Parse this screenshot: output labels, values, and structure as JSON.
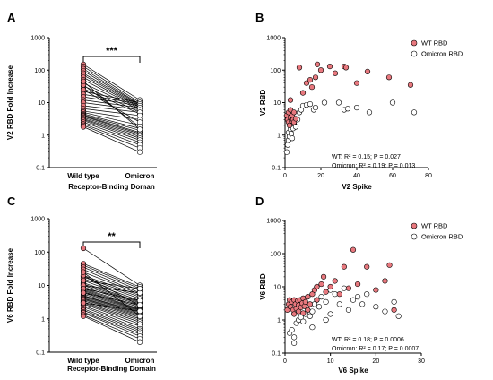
{
  "colors": {
    "wt": "#e8787e",
    "omicron": "#ffffff",
    "stroke": "#000000"
  },
  "chart_data": [
    {
      "panel": "A",
      "type": "scatter",
      "subtype": "paired-before-after",
      "ylabel": "V2 RBD Fold Increase",
      "xlabel": "Receptor-Binding Doman",
      "categories": [
        "Wild type",
        "Omicron"
      ],
      "yscale": "log",
      "ylim": [
        0.1,
        1000
      ],
      "yticks": [
        "0.1",
        "1",
        "10",
        "100",
        "1000"
      ],
      "significance": "***",
      "pairs": [
        [
          150,
          12
        ],
        [
          130,
          10
        ],
        [
          110,
          9
        ],
        [
          95,
          8.5
        ],
        [
          80,
          8
        ],
        [
          70,
          7.5
        ],
        [
          60,
          7
        ],
        [
          50,
          6.5
        ],
        [
          40,
          6
        ],
        [
          33,
          5
        ],
        [
          27,
          4.5
        ],
        [
          22,
          10
        ],
        [
          18,
          9
        ],
        [
          15,
          8
        ],
        [
          12,
          7
        ],
        [
          10,
          6
        ],
        [
          8,
          5
        ],
        [
          6.5,
          4
        ],
        [
          5.5,
          3
        ],
        [
          5,
          2
        ],
        [
          4.5,
          1.6
        ],
        [
          4.2,
          1.4
        ],
        [
          4,
          1.2
        ],
        [
          3.8,
          1.1
        ],
        [
          3.5,
          1
        ],
        [
          3.2,
          0.9
        ],
        [
          3,
          0.8
        ],
        [
          2.8,
          0.7
        ],
        [
          2.5,
          0.6
        ],
        [
          2.2,
          0.5
        ],
        [
          2,
          0.4
        ],
        [
          1.8,
          0.3
        ],
        [
          25,
          2.5
        ],
        [
          35,
          1.8
        ],
        [
          45,
          1.5
        ]
      ]
    },
    {
      "panel": "B",
      "type": "scatter",
      "xlabel": "V2 Spike",
      "ylabel": "V2 RBD",
      "yscale": "log",
      "ylim": [
        0.1,
        1000
      ],
      "xlim": [
        0,
        80
      ],
      "xticks": [
        "0",
        "20",
        "40",
        "60",
        "80"
      ],
      "yticks": [
        "0.1",
        "1",
        "10",
        "100",
        "1000"
      ],
      "legend": [
        "WT RBD",
        "Omicron RBD"
      ],
      "annotation_wt": "WT: R² = 0.15; P = 0.027",
      "annotation_om": "Omicron: R² = 0.19; P = 0.013",
      "series": [
        {
          "name": "WT RBD",
          "points": [
            [
              1,
              4
            ],
            [
              1.5,
              3
            ],
            [
              2,
              2.5
            ],
            [
              2,
              5
            ],
            [
              2.5,
              2
            ],
            [
              3,
              3.5
            ],
            [
              3,
              6
            ],
            [
              3.5,
              2.8
            ],
            [
              4,
              4
            ],
            [
              4.5,
              3
            ],
            [
              5,
              2.5
            ],
            [
              5,
              5
            ],
            [
              6,
              3.2
            ],
            [
              3,
              12
            ],
            [
              8,
              120
            ],
            [
              10,
              20
            ],
            [
              12,
              40
            ],
            [
              14,
              50
            ],
            [
              15,
              30
            ],
            [
              17,
              60
            ],
            [
              18,
              150
            ],
            [
              20,
              100
            ],
            [
              25,
              130
            ],
            [
              28,
              80
            ],
            [
              33,
              130
            ],
            [
              34,
              120
            ],
            [
              40,
              40
            ],
            [
              46,
              90
            ],
            [
              58,
              60
            ],
            [
              70,
              35
            ]
          ]
        },
        {
          "name": "Omicron RBD",
          "points": [
            [
              1,
              0.3
            ],
            [
              1.5,
              0.5
            ],
            [
              2,
              0.7
            ],
            [
              2,
              1.2
            ],
            [
              2.5,
              0.9
            ],
            [
              3,
              1.5
            ],
            [
              3,
              2
            ],
            [
              3.5,
              1.1
            ],
            [
              4,
              0.8
            ],
            [
              4.5,
              1.6
            ],
            [
              5,
              2.2
            ],
            [
              6,
              1.8
            ],
            [
              7,
              3
            ],
            [
              8,
              5
            ],
            [
              9,
              6
            ],
            [
              10,
              8
            ],
            [
              12,
              8.5
            ],
            [
              14,
              9
            ],
            [
              16,
              6
            ],
            [
              17,
              7
            ],
            [
              22,
              10
            ],
            [
              30,
              10
            ],
            [
              33,
              6
            ],
            [
              35,
              6.5
            ],
            [
              40,
              7
            ],
            [
              47,
              5
            ],
            [
              60,
              10
            ],
            [
              72,
              5
            ]
          ]
        }
      ]
    },
    {
      "panel": "C",
      "type": "scatter",
      "subtype": "paired-before-after",
      "ylabel": "V6 RBD Fold Increase",
      "xlabel": "Receptor-Binding Domain",
      "categories": [
        "Wild type",
        "Omicron"
      ],
      "yscale": "log",
      "ylim": [
        0.1,
        1000
      ],
      "yticks": [
        "0.1",
        "1",
        "10",
        "100",
        "1000"
      ],
      "significance": "**",
      "pairs": [
        [
          130,
          10
        ],
        [
          45,
          9
        ],
        [
          40,
          8
        ],
        [
          35,
          7
        ],
        [
          30,
          6
        ],
        [
          25,
          5.5
        ],
        [
          20,
          5
        ],
        [
          18,
          4.5
        ],
        [
          16,
          4
        ],
        [
          14,
          3.5
        ],
        [
          12,
          3.2
        ],
        [
          11,
          3
        ],
        [
          10,
          2.8
        ],
        [
          9,
          2.6
        ],
        [
          8,
          2.4
        ],
        [
          7.5,
          2.2
        ],
        [
          7,
          2
        ],
        [
          6.5,
          1.9
        ],
        [
          6,
          1.8
        ],
        [
          5.5,
          1.7
        ],
        [
          5,
          1.6
        ],
        [
          4.8,
          1.5
        ],
        [
          4.5,
          1.4
        ],
        [
          4.2,
          1.3
        ],
        [
          4,
          1.2
        ],
        [
          3.8,
          1.1
        ],
        [
          3.5,
          1
        ],
        [
          3.2,
          0.9
        ],
        [
          3,
          0.8
        ],
        [
          2.8,
          0.7
        ],
        [
          2.5,
          0.6
        ],
        [
          2.3,
          0.5
        ],
        [
          2,
          0.45
        ],
        [
          1.8,
          0.4
        ],
        [
          1.6,
          0.35
        ],
        [
          1.5,
          0.3
        ],
        [
          1.3,
          0.25
        ],
        [
          1.2,
          0.2
        ],
        [
          10,
          6
        ],
        [
          14,
          8
        ],
        [
          20,
          2.5
        ],
        [
          25,
          1.2
        ],
        [
          8,
          3.5
        ],
        [
          6,
          2.6
        ],
        [
          3,
          1.7
        ]
      ]
    },
    {
      "panel": "D",
      "type": "scatter",
      "xlabel": "V6 Spike",
      "ylabel": "V6 RBD",
      "yscale": "log",
      "ylim": [
        0.1,
        1000
      ],
      "xlim": [
        0,
        30
      ],
      "xticks": [
        "0",
        "10",
        "20",
        "30"
      ],
      "yticks": [
        "0.1",
        "1",
        "10",
        "100",
        "1000"
      ],
      "legend": [
        "WT RBD",
        "Omicron RBD"
      ],
      "annotation_wt": "WT: R² = 0.18; P = 0.0006",
      "annotation_om": "Omicron: R² = 0.17; P = 0.0007",
      "series": [
        {
          "name": "WT RBD",
          "points": [
            [
              0.5,
              2
            ],
            [
              0.8,
              3
            ],
            [
              1,
              4
            ],
            [
              1.2,
              2.5
            ],
            [
              1.5,
              3.5
            ],
            [
              1.8,
              2
            ],
            [
              2,
              4
            ],
            [
              2,
              1.5
            ],
            [
              2.3,
              3
            ],
            [
              2.5,
              2.2
            ],
            [
              2.8,
              3.8
            ],
            [
              3,
              1.8
            ],
            [
              3,
              2.8
            ],
            [
              3.3,
              4
            ],
            [
              3.5,
              2.4
            ],
            [
              3.8,
              3.2
            ],
            [
              4,
              1.6
            ],
            [
              4,
              4.5
            ],
            [
              4.3,
              2.6
            ],
            [
              4.5,
              3.5
            ],
            [
              5,
              2
            ],
            [
              5,
              5
            ],
            [
              5.5,
              3
            ],
            [
              6,
              6
            ],
            [
              6.5,
              8
            ],
            [
              7,
              10
            ],
            [
              7,
              4
            ],
            [
              8,
              12
            ],
            [
              8.5,
              20
            ],
            [
              9,
              7
            ],
            [
              10,
              10
            ],
            [
              11,
              15
            ],
            [
              12,
              6
            ],
            [
              13,
              40
            ],
            [
              14,
              9
            ],
            [
              16,
              12
            ],
            [
              18,
              40
            ],
            [
              20,
              8
            ],
            [
              22,
              15
            ],
            [
              23,
              45
            ],
            [
              15,
              130
            ],
            [
              24,
              2
            ]
          ]
        },
        {
          "name": "Omicron RBD",
          "points": [
            [
              1,
              0.4
            ],
            [
              1.5,
              0.5
            ],
            [
              2,
              0.3
            ],
            [
              2.5,
              0.8
            ],
            [
              3,
              1
            ],
            [
              3.5,
              1.2
            ],
            [
              4,
              0.9
            ],
            [
              4.5,
              1.5
            ],
            [
              5,
              2
            ],
            [
              5.5,
              1.3
            ],
            [
              6,
              1.8
            ],
            [
              6.5,
              3
            ],
            [
              7,
              4
            ],
            [
              7.5,
              2.5
            ],
            [
              8,
              5
            ],
            [
              9,
              3.5
            ],
            [
              10,
              1.5
            ],
            [
              10,
              8
            ],
            [
              11,
              6
            ],
            [
              12,
              3
            ],
            [
              13,
              9
            ],
            [
              14,
              2
            ],
            [
              15,
              4
            ],
            [
              16,
              5
            ],
            [
              17,
              3
            ],
            [
              18,
              6
            ],
            [
              20,
              2.5
            ],
            [
              22,
              1.8
            ],
            [
              24,
              3.5
            ],
            [
              25,
              1.3
            ],
            [
              2,
              0.2
            ],
            [
              6,
              0.6
            ],
            [
              9,
              1
            ]
          ]
        }
      ]
    }
  ]
}
